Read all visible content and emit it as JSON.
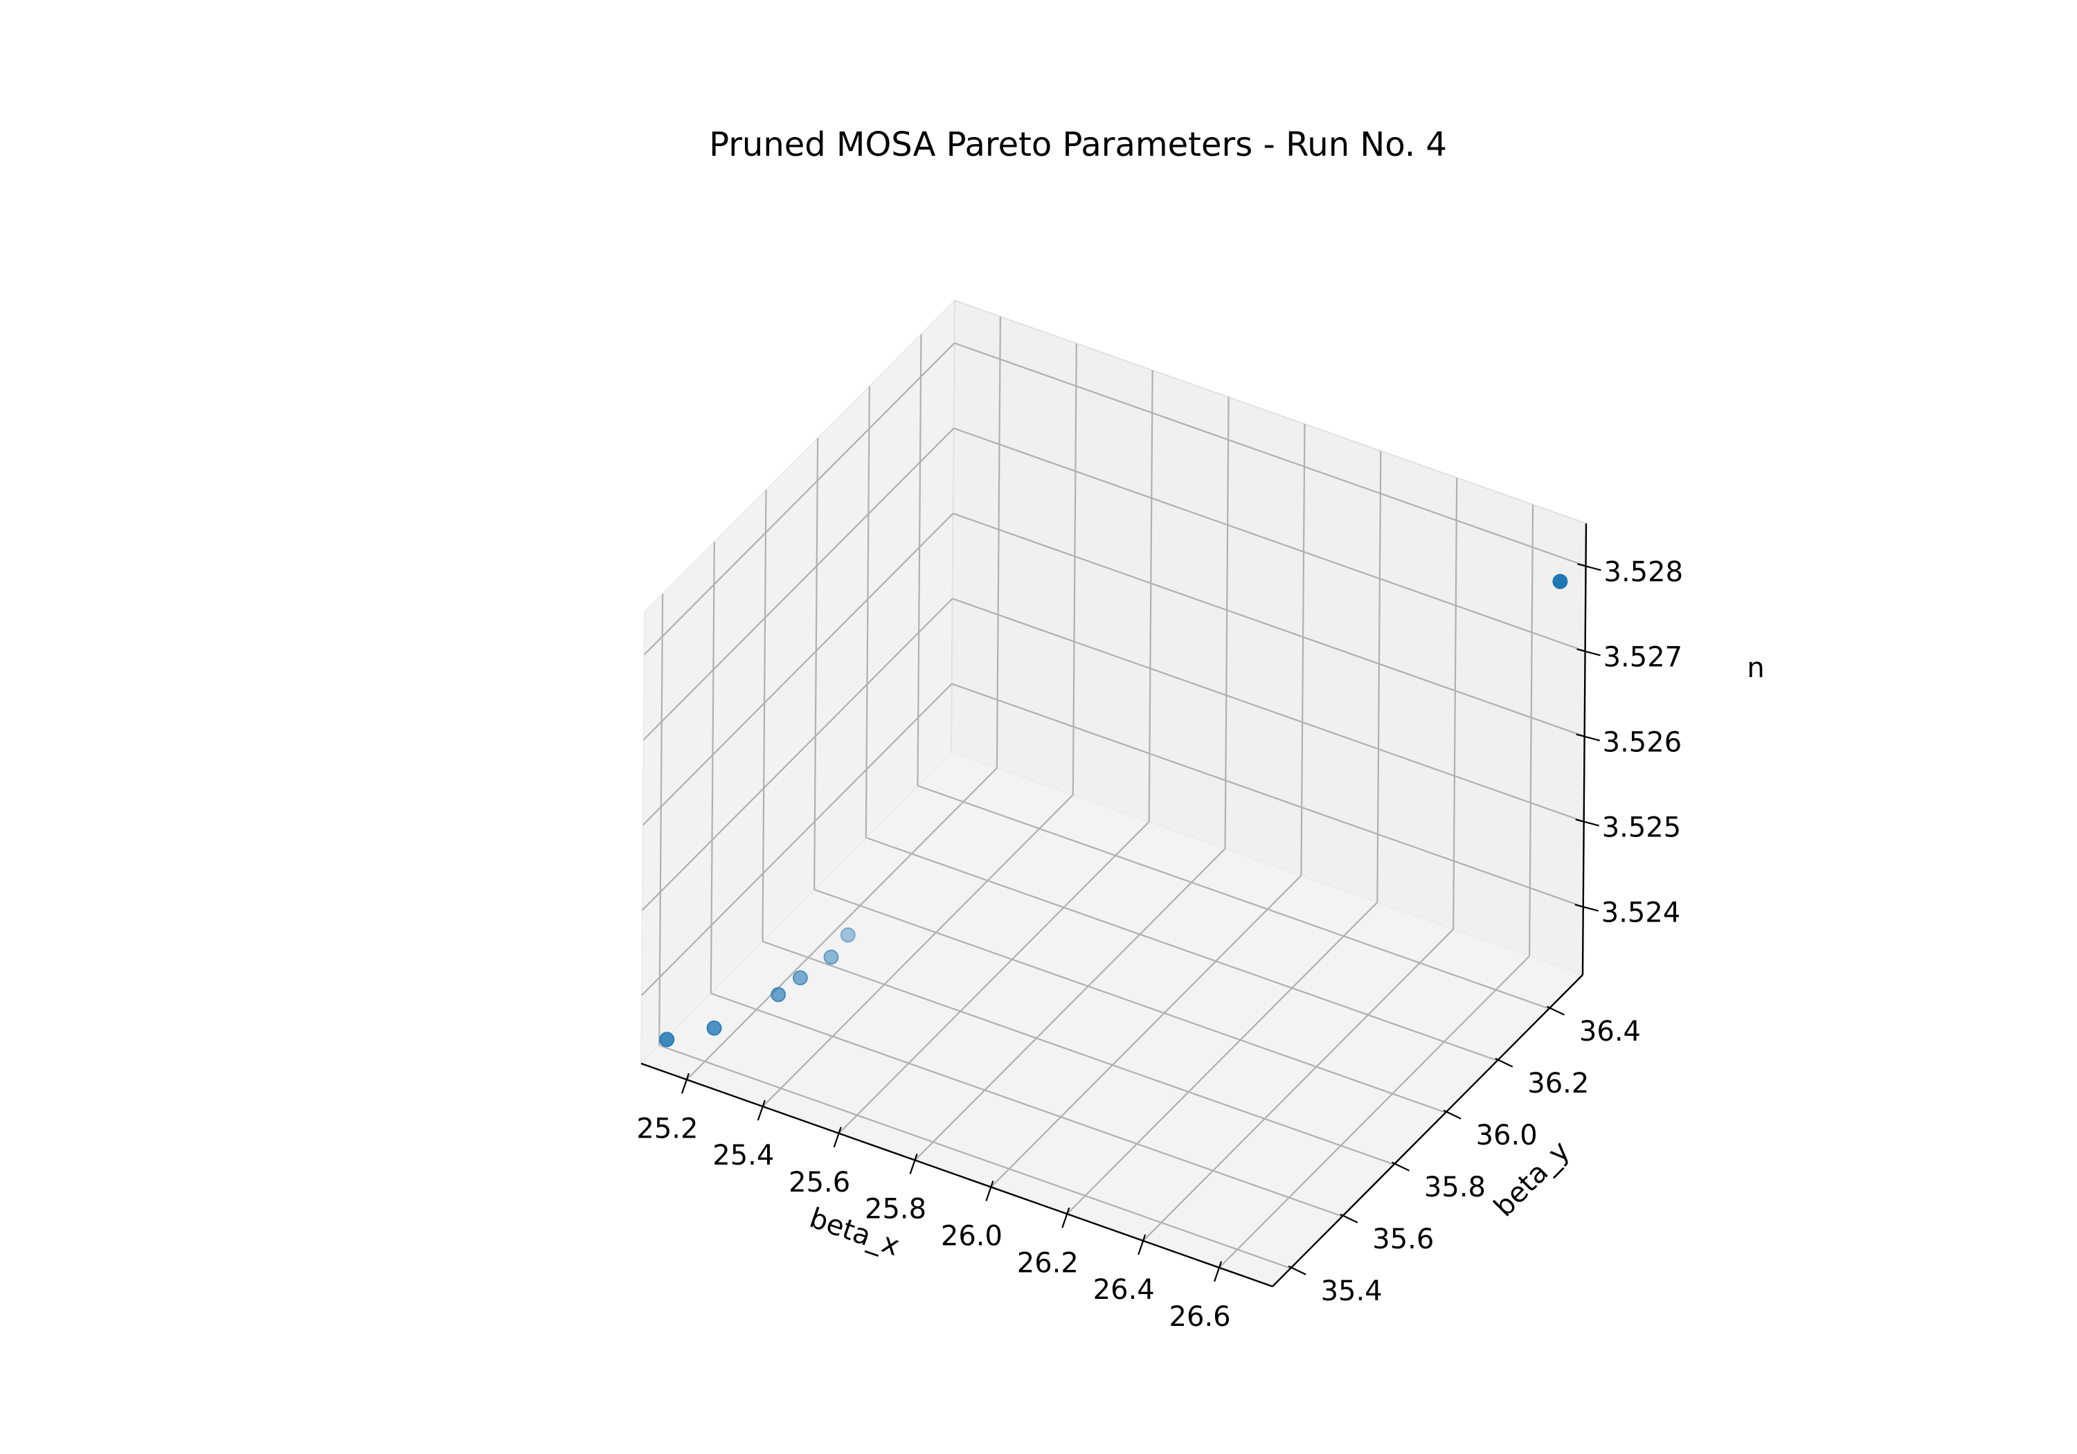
{
  "chart_data": {
    "type": "scatter",
    "projection": "3d",
    "title": "Pruned MOSA Pareto Parameters - Run No. 4",
    "xlabel": "beta_x",
    "ylabel": "beta_y",
    "zlabel": "n",
    "grid": true,
    "legend": "none",
    "x_ticks": [
      "25.2",
      "25.4",
      "25.6",
      "25.8",
      "26.0",
      "26.2",
      "26.4",
      "26.6"
    ],
    "y_ticks": [
      "35.4",
      "35.6",
      "35.8",
      "36.0",
      "36.2",
      "36.4"
    ],
    "z_ticks": [
      "3.524",
      "3.525",
      "3.526",
      "3.527",
      "3.528"
    ],
    "series": [
      {
        "color": "#1f77b4",
        "points": [
          {
            "x": 25.1,
            "y": 35.4,
            "z": 3.5233
          },
          {
            "x": 25.17,
            "y": 35.48,
            "z": 3.5233
          },
          {
            "x": 25.23,
            "y": 35.64,
            "z": 3.5233
          },
          {
            "x": 25.24,
            "y": 35.71,
            "z": 3.5233
          },
          {
            "x": 25.26,
            "y": 35.8,
            "z": 3.5233
          },
          {
            "x": 25.25,
            "y": 35.88,
            "z": 3.5233
          },
          {
            "x": 26.72,
            "y": 36.46,
            "z": 3.528
          }
        ]
      }
    ]
  }
}
